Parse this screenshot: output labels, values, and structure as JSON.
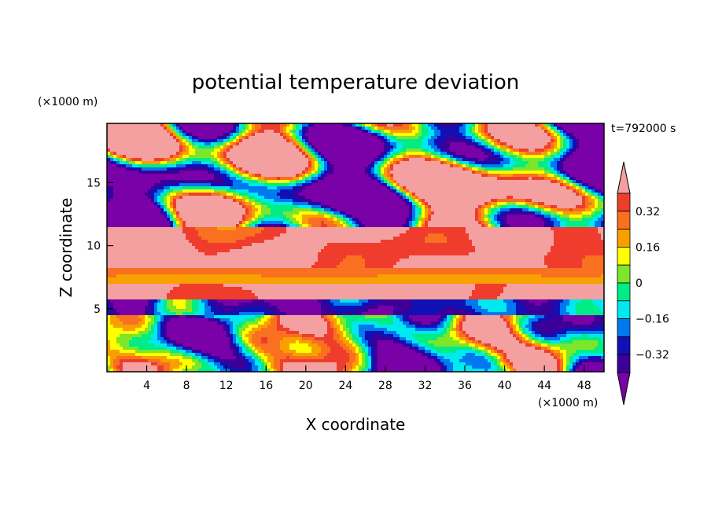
{
  "chart_data": {
    "type": "heatmap",
    "title": "potential temperature deviation",
    "time_label": "t=792000 s",
    "xlabel": "X coordinate",
    "ylabel": "Z coordinate",
    "x_unit": "(×1000 m)",
    "y_unit": "(×1000 m)",
    "xlim": [
      0,
      50
    ],
    "ylim": [
      0,
      19.7
    ],
    "x_ticks": [
      4,
      8,
      12,
      16,
      20,
      24,
      28,
      32,
      36,
      40,
      44,
      48
    ],
    "y_ticks": [
      5,
      10,
      15
    ],
    "colorbar": {
      "levels": [
        -0.4,
        -0.32,
        -0.24,
        -0.16,
        -0.08,
        0,
        0.08,
        0.16,
        0.24,
        0.32,
        0.4
      ],
      "labeled_levels": [
        0.32,
        0.16,
        0,
        -0.16,
        -0.32
      ],
      "tick_labels": [
        "0.32",
        "0.16",
        "0",
        "−0.16",
        "−0.32"
      ],
      "colors": [
        "#f4a0a0",
        "#f03c2c",
        "#f87020",
        "#f8a000",
        "#ffff00",
        "#7ee62a",
        "#00ec84",
        "#00e8f0",
        "#0078f0",
        "#1010b4",
        "#3c0098",
        "#7a00a8"
      ],
      "extend": "both"
    }
  }
}
